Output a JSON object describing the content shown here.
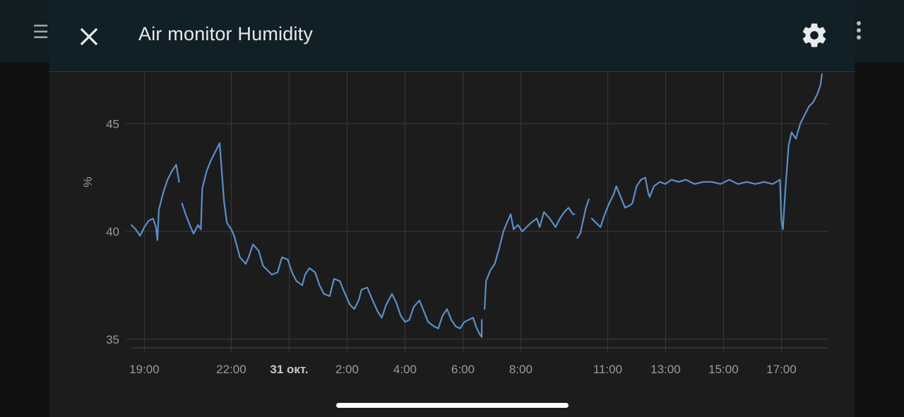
{
  "dialog": {
    "title": "Air monitor Humidity",
    "close_icon": "close-icon",
    "settings_icon": "gear-icon"
  },
  "background": {
    "menu_icon": "hamburger-menu-icon",
    "more_icon": "more-vertical-icon"
  },
  "colors": {
    "line": "#5b8fc7",
    "grid": "#3a3a3a",
    "header": "#111f26",
    "panel": "#1c1c1c"
  },
  "chart_data": {
    "type": "line",
    "title": "Air monitor Humidity",
    "ylabel": "%",
    "xlabel": "",
    "ylim": [
      34.6,
      47.4
    ],
    "yticks": [
      35,
      40,
      45
    ],
    "xlim": [
      18.55,
      42.6
    ],
    "xticks": [
      {
        "x": 19,
        "label": "19:00",
        "bold": false
      },
      {
        "x": 22,
        "label": "22:00",
        "bold": false
      },
      {
        "x": 24,
        "label": "31 окт.",
        "bold": true
      },
      {
        "x": 26,
        "label": "2:00",
        "bold": false
      },
      {
        "x": 28,
        "label": "4:00",
        "bold": false
      },
      {
        "x": 30,
        "label": "6:00",
        "bold": false
      },
      {
        "x": 32,
        "label": "8:00",
        "bold": false
      },
      {
        "x": 35,
        "label": "11:00",
        "bold": false
      },
      {
        "x": 37,
        "label": "13:00",
        "bold": false
      },
      {
        "x": 39,
        "label": "15:00",
        "bold": false
      },
      {
        "x": 41,
        "label": "17:00",
        "bold": false
      }
    ],
    "grid": true,
    "legend": "none",
    "series": [
      {
        "segments": [
          [
            [
              18.55,
              40.3
            ],
            [
              18.7,
              40.1
            ],
            [
              18.85,
              39.8
            ],
            [
              19.0,
              40.2
            ],
            [
              19.15,
              40.5
            ],
            [
              19.3,
              40.6
            ],
            [
              19.4,
              40.2
            ],
            [
              19.45,
              39.6
            ],
            [
              19.5,
              41.0
            ],
            [
              19.65,
              41.8
            ],
            [
              19.8,
              42.4
            ],
            [
              19.95,
              42.8
            ],
            [
              20.1,
              43.1
            ],
            [
              20.2,
              42.3
            ]
          ],
          [
            [
              20.3,
              41.3
            ],
            [
              20.45,
              40.7
            ],
            [
              20.6,
              40.2
            ],
            [
              20.7,
              39.9
            ],
            [
              20.85,
              40.3
            ],
            [
              20.95,
              40.1
            ],
            [
              21.0,
              42.0
            ],
            [
              21.15,
              42.8
            ],
            [
              21.3,
              43.3
            ],
            [
              21.45,
              43.7
            ],
            [
              21.6,
              44.1
            ],
            [
              21.65,
              43.2
            ],
            [
              21.75,
              41.4
            ],
            [
              21.85,
              40.4
            ],
            [
              22.0,
              40.1
            ],
            [
              22.1,
              39.8
            ],
            [
              22.3,
              38.8
            ],
            [
              22.5,
              38.5
            ],
            [
              22.6,
              38.8
            ],
            [
              22.75,
              39.4
            ],
            [
              22.95,
              39.1
            ],
            [
              23.1,
              38.4
            ],
            [
              23.25,
              38.2
            ],
            [
              23.4,
              38.0
            ],
            [
              23.6,
              38.1
            ],
            [
              23.75,
              38.8
            ],
            [
              23.95,
              38.7
            ],
            [
              24.1,
              38.1
            ],
            [
              24.25,
              37.7
            ],
            [
              24.45,
              37.5
            ],
            [
              24.55,
              38.0
            ],
            [
              24.7,
              38.3
            ],
            [
              24.9,
              38.1
            ],
            [
              25.05,
              37.5
            ],
            [
              25.2,
              37.1
            ],
            [
              25.4,
              37.0
            ],
            [
              25.55,
              37.8
            ],
            [
              25.75,
              37.7
            ],
            [
              25.9,
              37.2
            ],
            [
              26.1,
              36.6
            ],
            [
              26.25,
              36.4
            ],
            [
              26.4,
              36.8
            ],
            [
              26.5,
              37.3
            ],
            [
              26.7,
              37.4
            ],
            [
              26.85,
              36.9
            ],
            [
              27.05,
              36.3
            ],
            [
              27.2,
              36.0
            ],
            [
              27.35,
              36.6
            ],
            [
              27.55,
              37.1
            ],
            [
              27.7,
              36.7
            ],
            [
              27.85,
              36.1
            ],
            [
              28.0,
              35.8
            ],
            [
              28.15,
              35.9
            ],
            [
              28.3,
              36.5
            ],
            [
              28.5,
              36.8
            ],
            [
              28.65,
              36.3
            ],
            [
              28.8,
              35.8
            ],
            [
              29.0,
              35.6
            ],
            [
              29.15,
              35.5
            ],
            [
              29.3,
              36.1
            ],
            [
              29.45,
              36.4
            ],
            [
              29.6,
              35.9
            ],
            [
              29.75,
              35.6
            ],
            [
              29.9,
              35.5
            ],
            [
              30.05,
              35.8
            ],
            [
              30.2,
              35.9
            ],
            [
              30.35,
              36.0
            ],
            [
              30.45,
              35.6
            ],
            [
              30.55,
              35.3
            ],
            [
              30.65,
              35.1
            ],
            [
              30.65,
              35.9
            ]
          ],
          [
            [
              30.75,
              36.4
            ],
            [
              30.8,
              37.7
            ],
            [
              30.95,
              38.2
            ],
            [
              31.1,
              38.5
            ],
            [
              31.25,
              39.2
            ],
            [
              31.4,
              40.0
            ],
            [
              31.55,
              40.5
            ],
            [
              31.65,
              40.8
            ],
            [
              31.75,
              40.1
            ],
            [
              31.9,
              40.3
            ],
            [
              32.05,
              40.0
            ],
            [
              32.2,
              40.2
            ],
            [
              32.35,
              40.4
            ],
            [
              32.55,
              40.6
            ],
            [
              32.65,
              40.2
            ],
            [
              32.8,
              40.9
            ],
            [
              33.0,
              40.6
            ],
            [
              33.2,
              40.2
            ],
            [
              33.35,
              40.6
            ],
            [
              33.5,
              40.9
            ],
            [
              33.65,
              41.1
            ],
            [
              33.8,
              40.8
            ],
            [
              33.85,
              40.8
            ]
          ],
          [
            [
              33.95,
              39.7
            ],
            [
              34.05,
              39.9
            ],
            [
              34.15,
              40.5
            ],
            [
              34.25,
              41.1
            ],
            [
              34.35,
              41.5
            ]
          ],
          [
            [
              34.45,
              40.6
            ],
            [
              34.6,
              40.4
            ],
            [
              34.75,
              40.2
            ],
            [
              34.9,
              40.8
            ],
            [
              35.05,
              41.3
            ],
            [
              35.2,
              41.7
            ],
            [
              35.3,
              42.1
            ],
            [
              35.45,
              41.6
            ],
            [
              35.6,
              41.1
            ],
            [
              35.75,
              41.2
            ],
            [
              35.85,
              41.3
            ],
            [
              36.0,
              42.1
            ],
            [
              36.15,
              42.4
            ],
            [
              36.3,
              42.5
            ],
            [
              36.4,
              41.8
            ],
            [
              36.45,
              41.6
            ],
            [
              36.6,
              42.1
            ],
            [
              36.8,
              42.3
            ],
            [
              37.0,
              42.2
            ],
            [
              37.2,
              42.4
            ],
            [
              37.45,
              42.3
            ],
            [
              37.7,
              42.4
            ],
            [
              38.0,
              42.2
            ],
            [
              38.3,
              42.3
            ],
            [
              38.6,
              42.3
            ],
            [
              38.9,
              42.2
            ],
            [
              39.2,
              42.4
            ],
            [
              39.5,
              42.2
            ],
            [
              39.8,
              42.3
            ],
            [
              40.1,
              42.2
            ],
            [
              40.4,
              42.3
            ],
            [
              40.7,
              42.2
            ],
            [
              40.95,
              42.4
            ],
            [
              41.0,
              40.5
            ],
            [
              41.05,
              40.1
            ],
            [
              41.15,
              42.2
            ],
            [
              41.25,
              44.0
            ],
            [
              41.35,
              44.6
            ],
            [
              41.5,
              44.3
            ],
            [
              41.65,
              45.0
            ],
            [
              41.8,
              45.4
            ],
            [
              41.95,
              45.8
            ],
            [
              42.1,
              46.0
            ],
            [
              42.25,
              46.4
            ],
            [
              42.35,
              46.8
            ],
            [
              42.4,
              47.3
            ]
          ]
        ]
      }
    ]
  }
}
